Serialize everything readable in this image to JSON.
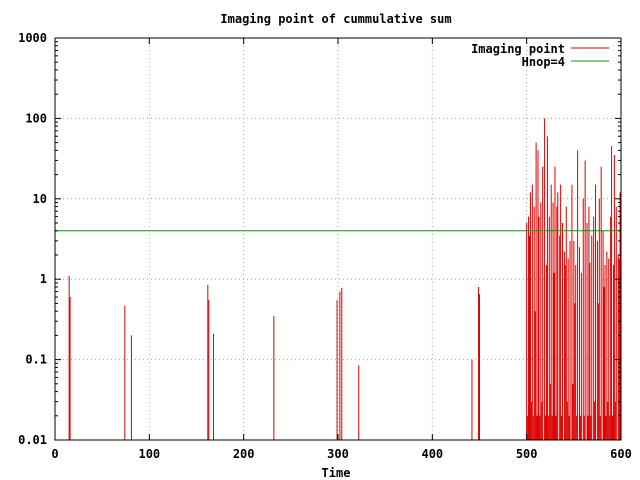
{
  "chart_data": {
    "type": "line",
    "title": "Imaging point of cummulative sum",
    "xlabel": "Time",
    "ylabel": "",
    "xlim": [
      0,
      600
    ],
    "ylim": [
      0.01,
      1000
    ],
    "yscale": "log",
    "grid": true,
    "legend_position": "top-right",
    "x_ticks": [
      0,
      100,
      200,
      300,
      400,
      500,
      600
    ],
    "x_tick_labels": [
      "0",
      "100",
      "200",
      "300",
      "400",
      "500",
      "600"
    ],
    "y_ticks": [
      0.01,
      0.1,
      1,
      10,
      100,
      1000
    ],
    "y_tick_labels": [
      "0.01",
      "0.1",
      "1",
      "10",
      "100",
      "1000"
    ],
    "series": [
      {
        "name": "Imaging point",
        "color": "#dd0000",
        "style": "impulses",
        "x": [
          15,
          16,
          74,
          81,
          162,
          163,
          168,
          232,
          299,
          302,
          304,
          322,
          442,
          449,
          450,
          500,
          501,
          502,
          503,
          504,
          505,
          506,
          507,
          508,
          509,
          510,
          511,
          512,
          513,
          514,
          515,
          516,
          517,
          518,
          519,
          520,
          521,
          522,
          523,
          524,
          525,
          526,
          527,
          528,
          529,
          530,
          531,
          532,
          533,
          534,
          535,
          536,
          537,
          538,
          539,
          540,
          541,
          542,
          543,
          544,
          545,
          546,
          547,
          548,
          549,
          550,
          551,
          552,
          553,
          554,
          555,
          556,
          557,
          558,
          559,
          560,
          561,
          562,
          563,
          564,
          565,
          566,
          567,
          568,
          569,
          570,
          571,
          572,
          573,
          574,
          575,
          576,
          577,
          578,
          579,
          580,
          581,
          582,
          583,
          584,
          585,
          586,
          587,
          588,
          589,
          590,
          591,
          592,
          593,
          594,
          595,
          596,
          597,
          598,
          599
        ],
        "y": [
          1.1,
          0.6,
          0.47,
          0.2,
          0.85,
          0.55,
          0.21,
          0.35,
          0.55,
          0.7,
          0.78,
          0.085,
          0.1,
          0.8,
          0.65,
          5,
          0.02,
          6,
          3.5,
          12,
          0.03,
          15,
          0.02,
          8,
          0.4,
          50,
          0.02,
          40,
          6,
          0.02,
          9,
          0.03,
          25,
          0.01,
          100,
          0.02,
          1.5,
          60,
          0.02,
          6,
          0.05,
          15,
          0.02,
          9,
          1.2,
          25,
          0.02,
          8,
          12,
          0.01,
          3.5,
          15,
          0.02,
          5,
          0.01,
          2.2,
          1.5,
          8,
          0.03,
          1.8,
          0.02,
          3,
          0.01,
          15,
          0.05,
          3,
          0.5,
          1.5,
          0.02,
          40,
          0.01,
          2.5,
          0.02,
          1.2,
          0.01,
          10,
          0.02,
          30,
          0.01,
          5,
          0.02,
          8,
          1.6,
          0.02,
          3.5,
          0.01,
          6,
          0.03,
          15,
          0.01,
          3,
          0.5,
          10,
          0.02,
          25,
          0.01,
          4,
          0.8,
          1.5,
          0.02,
          2.2,
          0.03,
          1.8,
          0.02,
          6,
          45,
          0.02,
          1.5,
          35,
          0.03,
          8,
          0.01,
          2,
          1.8,
          12
        ]
      },
      {
        "name": "Hnop=4",
        "color": "#00a000",
        "style": "line",
        "x": [
          0,
          600
        ],
        "y": [
          4,
          4
        ]
      }
    ]
  }
}
